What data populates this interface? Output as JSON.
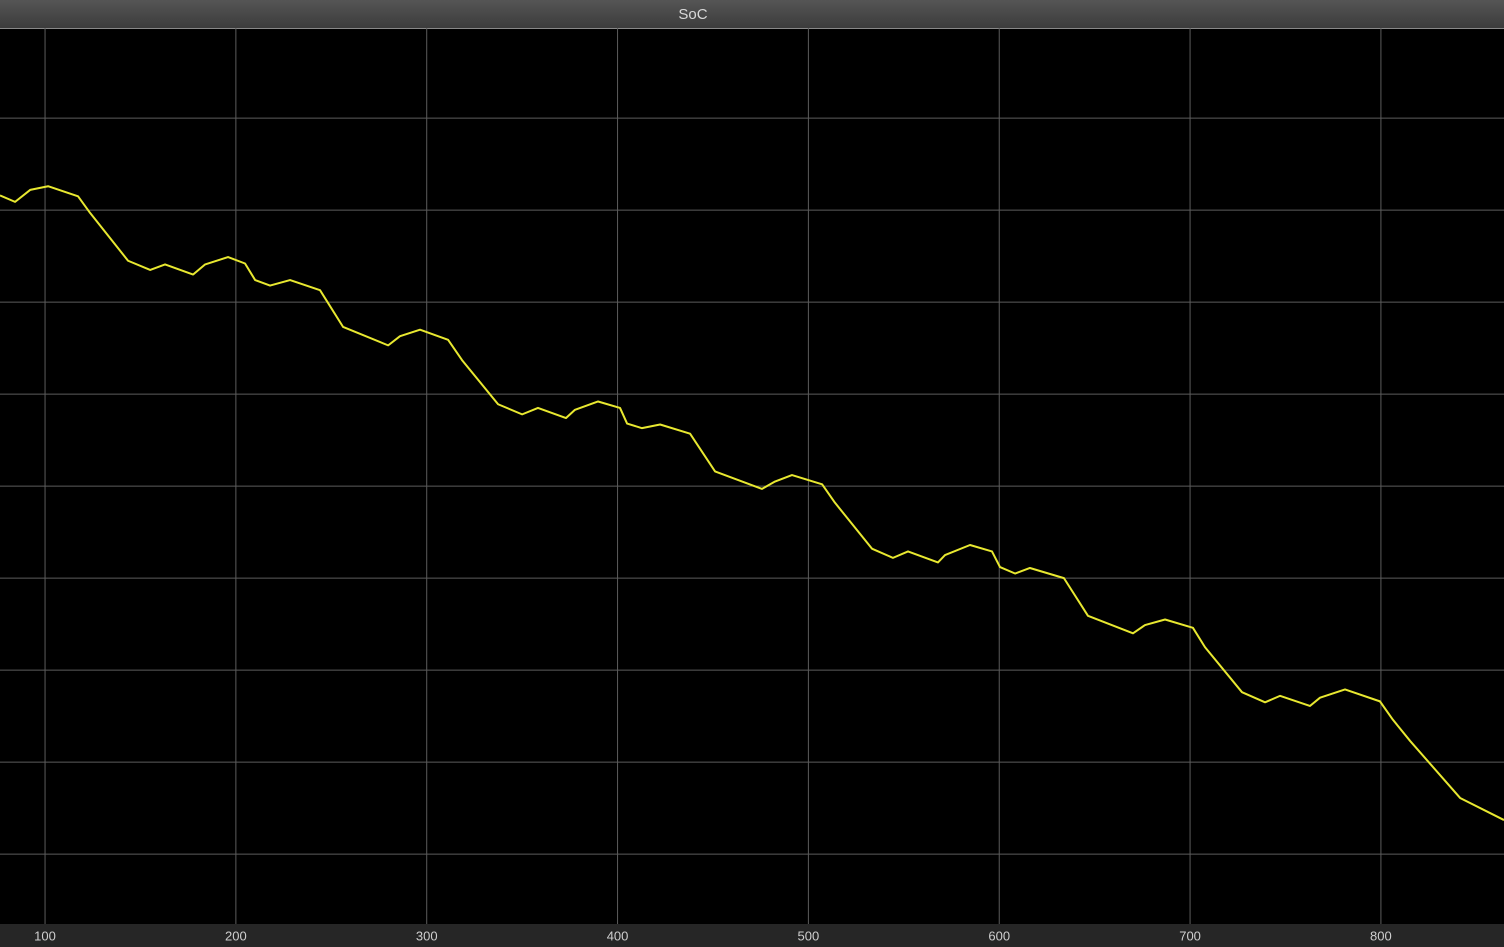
{
  "chart_data": {
    "type": "line",
    "title": "SoC",
    "x": [
      76.4,
      84.3,
      92.2,
      101.6,
      117.3,
      123.6,
      143.5,
      155.1,
      162.9,
      177.6,
      183.9,
      195.9,
      204.8,
      210.1,
      217.9,
      228.4,
      244.1,
      256.2,
      279.8,
      286.0,
      296.5,
      311.2,
      318.5,
      337.4,
      350.0,
      358.3,
      373.0,
      377.7,
      389.8,
      401.3,
      405.0,
      412.8,
      422.3,
      438.0,
      451.1,
      475.7,
      482.5,
      491.4,
      507.2,
      513.9,
      533.3,
      544.3,
      552.2,
      567.9,
      571.6,
      584.7,
      596.2,
      600.4,
      608.3,
      616.1,
      633.9,
      646.5,
      670.1,
      676.4,
      686.9,
      701.5,
      707.8,
      727.2,
      739.3,
      747.1,
      762.8,
      768.1,
      781.2,
      799.5,
      806.3,
      815.3,
      841.5,
      864.5
    ],
    "series": [
      {
        "color": "#e8e830",
        "values": [
          7.16,
          7.09,
          7.22,
          7.26,
          7.15,
          6.97,
          6.45,
          6.35,
          6.41,
          6.3,
          6.41,
          6.49,
          6.42,
          6.24,
          6.18,
          6.24,
          6.13,
          5.73,
          5.53,
          5.63,
          5.7,
          5.59,
          5.37,
          4.89,
          4.78,
          4.85,
          4.74,
          4.83,
          4.92,
          4.85,
          4.68,
          4.63,
          4.67,
          4.57,
          4.16,
          3.97,
          4.05,
          4.12,
          4.02,
          3.82,
          3.32,
          3.22,
          3.29,
          3.17,
          3.25,
          3.36,
          3.29,
          3.12,
          3.05,
          3.11,
          3.0,
          2.59,
          2.4,
          2.49,
          2.55,
          2.46,
          2.25,
          1.76,
          1.65,
          1.72,
          1.61,
          1.7,
          1.79,
          1.66,
          1.46,
          1.23,
          0.61,
          0.37
        ]
      }
    ],
    "xlim": [
      76.4,
      864.5
    ],
    "xticks": [
      100,
      200,
      300,
      400,
      500,
      600,
      700,
      800
    ],
    "ylim": [
      -0.76,
      8.98
    ],
    "yticks": [
      0,
      1,
      2,
      3,
      4,
      5,
      6,
      7,
      8
    ],
    "grid": true
  }
}
